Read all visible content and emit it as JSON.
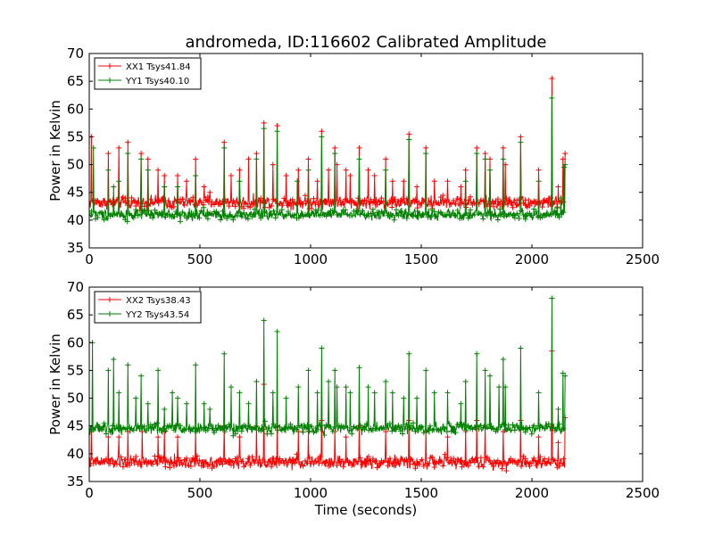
{
  "figure": {
    "title": "andromeda, ID:116602 Calibrated Amplitude"
  },
  "chart_data": [
    {
      "type": "line",
      "title": "andromeda, ID:116602 Calibrated Amplitude",
      "xlabel": "",
      "ylabel": "Power in Kelvin",
      "xlim": [
        0,
        2500
      ],
      "ylim": [
        35,
        70
      ],
      "xticks": [
        0,
        500,
        1000,
        1500,
        2000,
        2500
      ],
      "yticks": [
        35,
        40,
        45,
        50,
        55,
        60,
        65,
        70
      ],
      "xtick_labels": [
        "0",
        "500",
        "1000",
        "1500",
        "2000",
        "2500"
      ],
      "ytick_labels": [
        "35",
        "40",
        "45",
        "50",
        "55",
        "60",
        "65",
        "70"
      ],
      "grid": false,
      "legend_position": "top-left",
      "x_range_data": [
        0,
        2150
      ],
      "series": [
        {
          "name": "XX1 Tsys41.84",
          "color": "#ff0000",
          "marker": "+",
          "baseline": 43.2,
          "noise": 0.7,
          "spikes": [
            [
              10,
              55
            ],
            [
              85,
              52
            ],
            [
              135,
              53
            ],
            [
              175,
              54
            ],
            [
              235,
              52
            ],
            [
              265,
              51
            ],
            [
              310,
              49
            ],
            [
              340,
              48
            ],
            [
              400,
              48
            ],
            [
              440,
              47
            ],
            [
              480,
              51
            ],
            [
              520,
              46
            ],
            [
              545,
              45
            ],
            [
              610,
              54
            ],
            [
              640,
              48
            ],
            [
              680,
              49
            ],
            [
              720,
              51
            ],
            [
              755,
              52
            ],
            [
              790,
              57.5
            ],
            [
              830,
              50
            ],
            [
              850,
              57
            ],
            [
              890,
              48
            ],
            [
              945,
              49
            ],
            [
              990,
              51
            ],
            [
              1030,
              47
            ],
            [
              1050,
              56
            ],
            [
              1080,
              49
            ],
            [
              1110,
              53
            ],
            [
              1120,
              50
            ],
            [
              1160,
              49
            ],
            [
              1180,
              48
            ],
            [
              1220,
              53
            ],
            [
              1260,
              49
            ],
            [
              1290,
              48
            ],
            [
              1340,
              51
            ],
            [
              1370,
              47
            ],
            [
              1420,
              47
            ],
            [
              1445,
              55.5
            ],
            [
              1480,
              46
            ],
            [
              1520,
              53
            ],
            [
              1560,
              47
            ],
            [
              1620,
              47
            ],
            [
              1680,
              46
            ],
            [
              1700,
              49
            ],
            [
              1750,
              53
            ],
            [
              1790,
              52
            ],
            [
              1810,
              51
            ],
            [
              1870,
              53
            ],
            [
              1880,
              50
            ],
            [
              1950,
              55
            ],
            [
              2030,
              49
            ],
            [
              2090,
              65.5
            ],
            [
              2120,
              46
            ],
            [
              2140,
              51
            ],
            [
              2150,
              52
            ]
          ],
          "y_range_observed": [
            40.5,
            65.5
          ]
        },
        {
          "name": "YY1 Tsys40.10",
          "color": "#008000",
          "marker": "+",
          "baseline": 41.0,
          "noise": 0.6,
          "spikes": [
            [
              20,
              53
            ],
            [
              85,
              49
            ],
            [
              110,
              46
            ],
            [
              135,
              47
            ],
            [
              175,
              52
            ],
            [
              235,
              51
            ],
            [
              265,
              49
            ],
            [
              340,
              46
            ],
            [
              400,
              46
            ],
            [
              480,
              48
            ],
            [
              610,
              53
            ],
            [
              680,
              47
            ],
            [
              755,
              51
            ],
            [
              790,
              56.5
            ],
            [
              850,
              56
            ],
            [
              940,
              47
            ],
            [
              990,
              49
            ],
            [
              1050,
              55
            ],
            [
              1110,
              52
            ],
            [
              1220,
              51
            ],
            [
              1340,
              49
            ],
            [
              1445,
              54.5
            ],
            [
              1520,
              52
            ],
            [
              1700,
              47
            ],
            [
              1750,
              52
            ],
            [
              1790,
              51
            ],
            [
              1810,
              49
            ],
            [
              1870,
              51
            ],
            [
              1950,
              54
            ],
            [
              2030,
              47
            ],
            [
              2090,
              62
            ],
            [
              2130,
              44
            ],
            [
              2145,
              49.5
            ],
            [
              2150,
              50
            ]
          ],
          "y_range_observed": [
            39.5,
            62.0
          ]
        }
      ]
    },
    {
      "type": "line",
      "title": "",
      "xlabel": "Time (seconds)",
      "ylabel": "Power in Kelvin",
      "xlim": [
        0,
        2500
      ],
      "ylim": [
        35,
        70
      ],
      "xticks": [
        0,
        500,
        1000,
        1500,
        2000,
        2500
      ],
      "yticks": [
        35,
        40,
        45,
        50,
        55,
        60,
        65,
        70
      ],
      "xtick_labels": [
        "0",
        "500",
        "1000",
        "1500",
        "2000",
        "2500"
      ],
      "ytick_labels": [
        "35",
        "40",
        "45",
        "50",
        "55",
        "60",
        "65",
        "70"
      ],
      "grid": false,
      "legend_position": "top-left",
      "x_range_data": [
        0,
        2150
      ],
      "series": [
        {
          "name": "XX2 Tsys38.43",
          "color": "#ff0000",
          "marker": "+",
          "baseline": 38.5,
          "noise": 0.7,
          "spikes": [
            [
              10,
              44
            ],
            [
              85,
              43
            ],
            [
              135,
              43
            ],
            [
              175,
              44
            ],
            [
              240,
              44
            ],
            [
              310,
              43
            ],
            [
              340,
              44
            ],
            [
              400,
              43
            ],
            [
              480,
              44
            ],
            [
              610,
              45
            ],
            [
              680,
              43
            ],
            [
              755,
              45
            ],
            [
              790,
              52.5
            ],
            [
              850,
              45
            ],
            [
              945,
              44
            ],
            [
              990,
              44
            ],
            [
              1050,
              46
            ],
            [
              1110,
              44
            ],
            [
              1160,
              43
            ],
            [
              1220,
              45
            ],
            [
              1340,
              44
            ],
            [
              1445,
              46
            ],
            [
              1520,
              44
            ],
            [
              1620,
              43
            ],
            [
              1700,
              44
            ],
            [
              1750,
              46
            ],
            [
              1790,
              45
            ],
            [
              1870,
              44
            ],
            [
              1950,
              46
            ],
            [
              2030,
              43
            ],
            [
              2090,
              58.5
            ],
            [
              2120,
              42
            ],
            [
              2150,
              46.5
            ]
          ],
          "y_range_observed": [
            37.0,
            58.5
          ]
        },
        {
          "name": "YY2 Tsys43.54",
          "color": "#008000",
          "marker": "+",
          "baseline": 44.6,
          "noise": 0.6,
          "spikes": [
            [
              15,
              60
            ],
            [
              85,
              55
            ],
            [
              110,
              57
            ],
            [
              135,
              51
            ],
            [
              175,
              56
            ],
            [
              210,
              50
            ],
            [
              235,
              54
            ],
            [
              265,
              49
            ],
            [
              310,
              55
            ],
            [
              340,
              48
            ],
            [
              375,
              51
            ],
            [
              400,
              50
            ],
            [
              440,
              49
            ],
            [
              480,
              56
            ],
            [
              520,
              49
            ],
            [
              545,
              48
            ],
            [
              610,
              58
            ],
            [
              640,
              52
            ],
            [
              680,
              51
            ],
            [
              720,
              49
            ],
            [
              755,
              53
            ],
            [
              790,
              64
            ],
            [
              830,
              51
            ],
            [
              850,
              62
            ],
            [
              890,
              50
            ],
            [
              945,
              52
            ],
            [
              990,
              55
            ],
            [
              1030,
              51
            ],
            [
              1050,
              59
            ],
            [
              1080,
              53
            ],
            [
              1110,
              55
            ],
            [
              1120,
              52
            ],
            [
              1160,
              52
            ],
            [
              1180,
              51
            ],
            [
              1220,
              55.5
            ],
            [
              1260,
              52
            ],
            [
              1290,
              51
            ],
            [
              1340,
              53
            ],
            [
              1370,
              51
            ],
            [
              1420,
              50
            ],
            [
              1445,
              58
            ],
            [
              1480,
              50
            ],
            [
              1520,
              55
            ],
            [
              1560,
              51
            ],
            [
              1620,
              51
            ],
            [
              1680,
              49
            ],
            [
              1700,
              53
            ],
            [
              1750,
              58
            ],
            [
              1790,
              55
            ],
            [
              1810,
              54
            ],
            [
              1850,
              52
            ],
            [
              1870,
              57
            ],
            [
              1880,
              52
            ],
            [
              1950,
              59
            ],
            [
              2030,
              51
            ],
            [
              2090,
              68
            ],
            [
              2120,
              48
            ],
            [
              2140,
              54.5
            ],
            [
              2150,
              54
            ]
          ],
          "y_range_observed": [
            43.5,
            68.0
          ]
        }
      ]
    }
  ]
}
